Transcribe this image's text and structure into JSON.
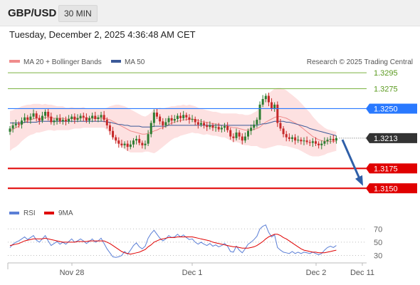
{
  "header": {
    "symbol": "GBP/USD",
    "timeframe": "30 MIN",
    "datetime": "Tuesday, December 2, 2025 4:36:48 AM CET"
  },
  "legend": {
    "ma20_label": "MA 20 + Bollinger Bands",
    "ma50_label": "MA 50",
    "source": "Research © 2025 Trading Central"
  },
  "colors": {
    "up": "#2e7d32",
    "down": "#c62828",
    "ma20": "#f08c8c",
    "ma50": "#3b5998",
    "band": "#fde1e1",
    "resistance": "#2979ff",
    "support": "#e00000",
    "target": "#7cb342",
    "current": "#333333",
    "arrow": "#2f5fa8",
    "rsi": "#5b7fd6",
    "rsi_ma": "#e00000"
  },
  "chart_data": [
    {
      "type": "candlestick",
      "title": "",
      "ylim": [
        1.3127,
        1.3313
      ],
      "x_tick_labels": [
        "Nov 28",
        "Dec 1",
        "Dec 2",
        "Dec 11"
      ],
      "price_levels": [
        {
          "label": "1.3295",
          "value": 1.3295,
          "kind": "target"
        },
        {
          "label": "1.3275",
          "value": 1.3275,
          "kind": "target"
        },
        {
          "label": "1.3250",
          "value": 1.325,
          "kind": "resistance"
        },
        {
          "label": "1.3213",
          "value": 1.3213,
          "kind": "current"
        },
        {
          "label": "1.3175",
          "value": 1.3175,
          "kind": "support"
        },
        {
          "label": "1.3150",
          "value": 1.315,
          "kind": "support"
        }
      ],
      "forecast_arrow": {
        "from": 1.3211,
        "to": 1.3153
      },
      "closes": [
        1.3225,
        1.3229,
        1.3231,
        1.323,
        1.3235,
        1.3239,
        1.3236,
        1.324,
        1.3244,
        1.3238,
        1.3235,
        1.3241,
        1.3246,
        1.324,
        1.3233,
        1.3235,
        1.3238,
        1.3234,
        1.3236,
        1.3234,
        1.3237,
        1.324,
        1.3236,
        1.3238,
        1.3241,
        1.3239,
        1.3235,
        1.3238,
        1.3241,
        1.3237,
        1.3239,
        1.3242,
        1.3236,
        1.3229,
        1.3222,
        1.3214,
        1.321,
        1.3206,
        1.3204,
        1.3206,
        1.3202,
        1.3205,
        1.321,
        1.3212,
        1.3207,
        1.3204,
        1.3206,
        1.3218,
        1.3232,
        1.3245,
        1.324,
        1.3234,
        1.3229,
        1.3233,
        1.3238,
        1.3235,
        1.3237,
        1.3241,
        1.3238,
        1.3242,
        1.3239,
        1.3236,
        1.3237,
        1.3233,
        1.323,
        1.3232,
        1.3229,
        1.3227,
        1.3229,
        1.3226,
        1.3227,
        1.3224,
        1.3226,
        1.3228,
        1.3223,
        1.3215,
        1.3213,
        1.322,
        1.3215,
        1.321,
        1.3215,
        1.3222,
        1.3226,
        1.323,
        1.3236,
        1.3255,
        1.3262,
        1.3266,
        1.3258,
        1.325,
        1.3255,
        1.3232,
        1.3225,
        1.3218,
        1.3214,
        1.3212,
        1.3214,
        1.321,
        1.3211,
        1.3209,
        1.321,
        1.3208,
        1.3207,
        1.3209,
        1.3206,
        1.3204,
        1.3206,
        1.3209,
        1.3211,
        1.3212,
        1.321,
        1.3213
      ],
      "ma20": [
        1.3222,
        1.3224,
        1.3226,
        1.3228,
        1.3231,
        1.3233,
        1.3235,
        1.3236,
        1.3237,
        1.3238,
        1.3238,
        1.3238,
        1.3239,
        1.3239,
        1.3239,
        1.3238,
        1.3238,
        1.3238,
        1.3238,
        1.3237,
        1.3237,
        1.3238,
        1.3238,
        1.3238,
        1.3238,
        1.3239,
        1.3238,
        1.3238,
        1.3238,
        1.3238,
        1.3238,
        1.3238,
        1.3238,
        1.3237,
        1.3236,
        1.3234,
        1.3232,
        1.323,
        1.3228,
        1.3226,
        1.3224,
        1.3222,
        1.3221,
        1.322,
        1.3219,
        1.3218,
        1.3218,
        1.3219,
        1.322,
        1.3222,
        1.3223,
        1.3225,
        1.3226,
        1.3228,
        1.323,
        1.3232,
        1.3233,
        1.3234,
        1.3235,
        1.3236,
        1.3236,
        1.3237,
        1.3237,
        1.3236,
        1.3235,
        1.3234,
        1.3233,
        1.3233,
        1.3232,
        1.3231,
        1.3231,
        1.323,
        1.3229,
        1.3229,
        1.3228,
        1.3227,
        1.3226,
        1.3226,
        1.3225,
        1.3224,
        1.3223,
        1.3223,
        1.3223,
        1.3224,
        1.3225,
        1.3227,
        1.323,
        1.3233,
        1.3235,
        1.3237,
        1.3239,
        1.324,
        1.324,
        1.3239,
        1.3238,
        1.3236,
        1.3234,
        1.3232,
        1.323,
        1.3227,
        1.3224,
        1.3221,
        1.3218,
        1.3215,
        1.3213,
        1.3211,
        1.321,
        1.3209,
        1.3209,
        1.3209,
        1.3209,
        1.3209
      ],
      "ma50": [
        1.3232,
        1.3232,
        1.3232,
        1.3232,
        1.3232,
        1.3233,
        1.3233,
        1.3233,
        1.3233,
        1.3233,
        1.3234,
        1.3234,
        1.3234,
        1.3234,
        1.3234,
        1.3234,
        1.3234,
        1.3234,
        1.3234,
        1.3234,
        1.3234,
        1.3234,
        1.3234,
        1.3234,
        1.3234,
        1.3234,
        1.3234,
        1.3234,
        1.3234,
        1.3234,
        1.3234,
        1.3234,
        1.3234,
        1.3233,
        1.3233,
        1.3232,
        1.3231,
        1.323,
        1.323,
        1.3229,
        1.3229,
        1.3228,
        1.3228,
        1.3228,
        1.3228,
        1.3227,
        1.3227,
        1.3227,
        1.3227,
        1.3228,
        1.3228,
        1.3228,
        1.3228,
        1.3228,
        1.3229,
        1.3229,
        1.3229,
        1.3229,
        1.3229,
        1.3229,
        1.3229,
        1.3229,
        1.3229,
        1.3229,
        1.3229,
        1.3229,
        1.3229,
        1.3229,
        1.3229,
        1.3229,
        1.3229,
        1.3229,
        1.3229,
        1.3229,
        1.3229,
        1.3229,
        1.3229,
        1.3229,
        1.3229,
        1.3229,
        1.3229,
        1.3229,
        1.3229,
        1.3229,
        1.3229,
        1.323,
        1.3231,
        1.3231,
        1.3232,
        1.3233,
        1.3234,
        1.3234,
        1.3234,
        1.3234,
        1.3233,
        1.3233,
        1.3232,
        1.3231,
        1.323,
        1.3229,
        1.3228,
        1.3227,
        1.3225,
        1.3224,
        1.3223,
        1.3222,
        1.3221,
        1.322,
        1.3219,
        1.3218,
        1.3217,
        1.3216
      ],
      "band_halfwidth": [
        0.0025,
        0.0024,
        0.0024,
        0.0023,
        0.0022,
        0.0021,
        0.002,
        0.0019,
        0.0019,
        0.0018,
        0.0018,
        0.0017,
        0.0017,
        0.0016,
        0.0016,
        0.0016,
        0.0015,
        0.0015,
        0.0015,
        0.0014,
        0.0014,
        0.0014,
        0.0013,
        0.0013,
        0.0013,
        0.0013,
        0.0012,
        0.0012,
        0.0012,
        0.0012,
        0.0012,
        0.0012,
        0.0012,
        0.0014,
        0.0017,
        0.002,
        0.0023,
        0.0025,
        0.0026,
        0.0027,
        0.0027,
        0.0027,
        0.0026,
        0.0025,
        0.0024,
        0.0023,
        0.0022,
        0.0023,
        0.0025,
        0.0028,
        0.0027,
        0.0026,
        0.0024,
        0.0023,
        0.0022,
        0.0021,
        0.002,
        0.002,
        0.0019,
        0.0019,
        0.0018,
        0.0018,
        0.0017,
        0.0017,
        0.0016,
        0.0016,
        0.0016,
        0.0015,
        0.0015,
        0.0015,
        0.0015,
        0.0015,
        0.0015,
        0.0015,
        0.0016,
        0.0017,
        0.0018,
        0.0018,
        0.0018,
        0.0019,
        0.0019,
        0.0019,
        0.002,
        0.0021,
        0.0022,
        0.0026,
        0.003,
        0.0033,
        0.0034,
        0.0035,
        0.0036,
        0.0036,
        0.0036,
        0.0036,
        0.0035,
        0.0034,
        0.0033,
        0.0032,
        0.0031,
        0.003,
        0.0029,
        0.0028,
        0.0027,
        0.0025,
        0.0023,
        0.0021,
        0.0019,
        0.0017,
        0.0015,
        0.0014,
        0.0013,
        0.0012
      ]
    },
    {
      "type": "line",
      "title": "",
      "legend": [
        "RSI",
        "9MA"
      ],
      "ylim": [
        22,
        80
      ],
      "y_ticks": [
        70,
        50,
        30
      ],
      "series": [
        {
          "name": "RSI",
          "values": [
            42,
            47,
            50,
            52,
            55,
            58,
            54,
            57,
            60,
            53,
            50,
            55,
            60,
            52,
            45,
            48,
            51,
            47,
            50,
            47,
            51,
            55,
            50,
            52,
            55,
            52,
            48,
            51,
            55,
            50,
            52,
            56,
            48,
            40,
            34,
            28,
            27,
            28,
            30,
            36,
            32,
            38,
            45,
            49,
            43,
            40,
            44,
            56,
            63,
            68,
            62,
            56,
            52,
            55,
            60,
            57,
            58,
            62,
            58,
            61,
            57,
            54,
            55,
            50,
            47,
            50,
            47,
            45,
            48,
            44,
            46,
            43,
            45,
            48,
            44,
            36,
            35,
            44,
            38,
            34,
            40,
            47,
            50,
            54,
            59,
            70,
            74,
            76,
            65,
            58,
            61,
            42,
            38,
            35,
            34,
            33,
            36,
            33,
            35,
            33,
            35,
            34,
            33,
            35,
            33,
            31,
            33,
            38,
            42,
            44,
            42,
            45
          ]
        },
        {
          "name": "9MA",
          "values": [
            45,
            46,
            47,
            48,
            50,
            52,
            53,
            54,
            55,
            55,
            55,
            55,
            56,
            55,
            54,
            53,
            52,
            51,
            50,
            50,
            50,
            50,
            50,
            51,
            51,
            51,
            51,
            52,
            52,
            52,
            52,
            52,
            52,
            50,
            48,
            45,
            42,
            39,
            36,
            34,
            33,
            32,
            33,
            34,
            35,
            37,
            39,
            43,
            46,
            50,
            52,
            54,
            55,
            56,
            57,
            57,
            57,
            58,
            58,
            58,
            58,
            58,
            58,
            57,
            56,
            55,
            54,
            53,
            52,
            50,
            49,
            48,
            47,
            46,
            45,
            44,
            43,
            43,
            42,
            41,
            41,
            41,
            42,
            43,
            45,
            48,
            51,
            55,
            58,
            60,
            62,
            62,
            60,
            57,
            55,
            52,
            49,
            46,
            43,
            40,
            38,
            37,
            36,
            35,
            35,
            34,
            34,
            34,
            35,
            36,
            37,
            38
          ]
        }
      ]
    }
  ]
}
